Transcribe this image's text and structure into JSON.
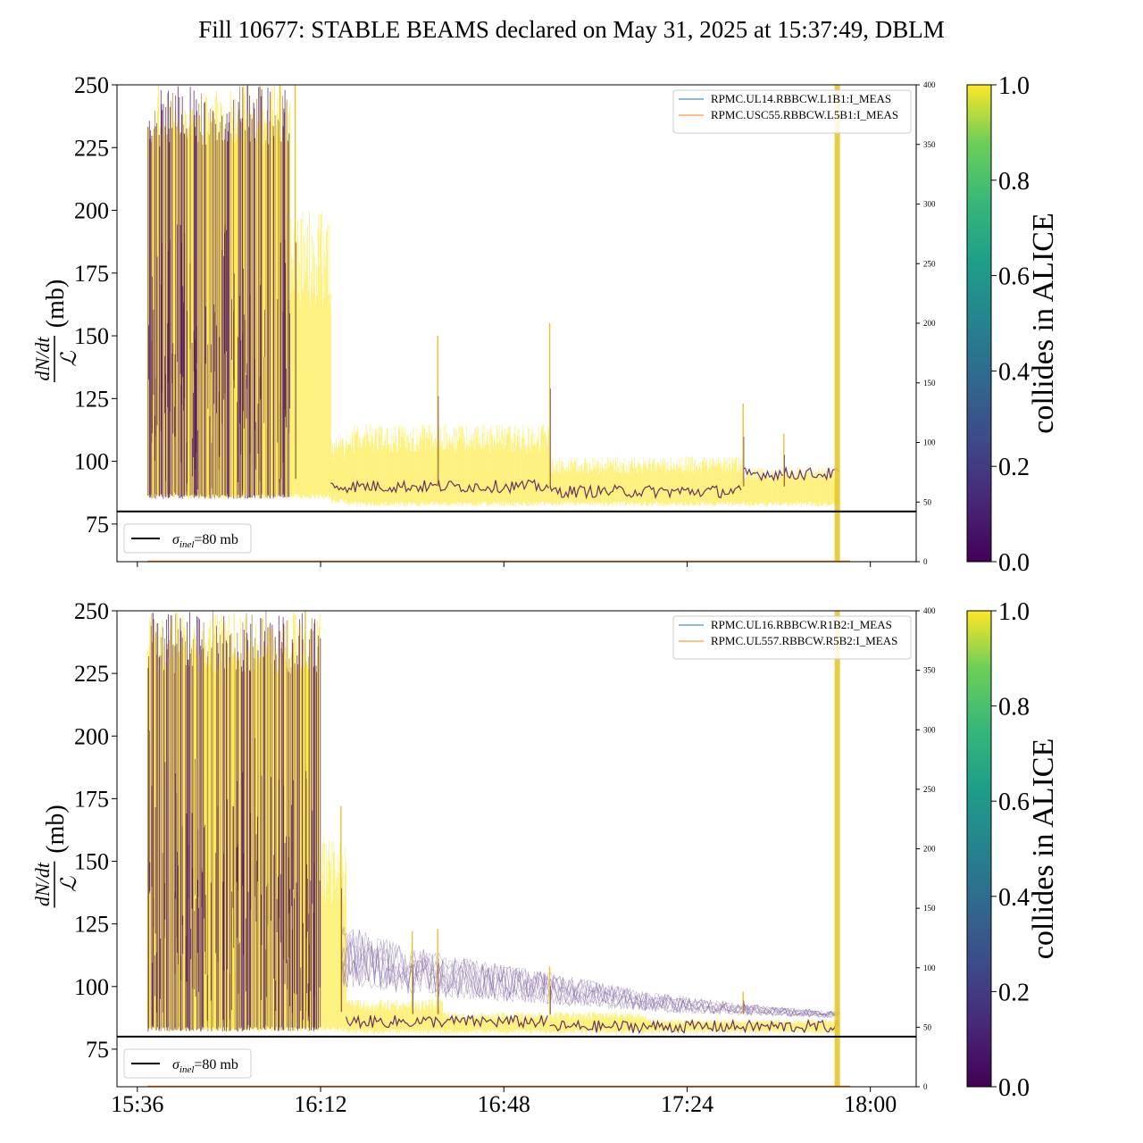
{
  "title": "Fill 10677: STABLE BEAMS declared on May 31, 2025 at 15:37:49, DBLM",
  "colors": {
    "viridis_low": "#440154",
    "viridis_high": "#fde725",
    "reference_line": "#000000"
  },
  "colorbar": {
    "label": "collides in ALICE",
    "ticks": [
      "0.0",
      "0.2",
      "0.4",
      "0.6",
      "0.8",
      "1.0"
    ],
    "range": [
      0,
      1
    ]
  },
  "chart_data": [
    {
      "type": "line",
      "title": "",
      "xlabel": "",
      "ylabel": "dN/dt / L (mb)",
      "ylim": [
        60,
        250
      ],
      "yticks": [
        "75",
        "100",
        "125",
        "150",
        "175",
        "200",
        "225",
        "250"
      ],
      "xrange_minutes": [
        -4,
        153
      ],
      "xticks": [
        {
          "minute": 0,
          "label": "15:36"
        },
        {
          "minute": 36,
          "label": "16:12"
        },
        {
          "minute": 72,
          "label": "16:48"
        },
        {
          "minute": 108,
          "label": "17:24"
        },
        {
          "minute": 144,
          "label": "18:00"
        }
      ],
      "show_x_tick_labels": false,
      "secondary_ylim": [
        0,
        400
      ],
      "secondary_yticks": [
        "0",
        "50",
        "100",
        "150",
        "200",
        "250",
        "300",
        "350",
        "400"
      ],
      "reference_line": {
        "y": 80,
        "label_text": "σinel=80 mb",
        "label_main": "σ",
        "label_sub": "inel",
        "label_rest": "=80 mb"
      },
      "legend": [
        "RPMC.UL14.RBBCW.L1B1:I_MEAS",
        "RPMC.USC55.RBBCW.L5B1:I_MEAS"
      ],
      "legend_colors": [
        "#1f77b4",
        "#ff7f0e"
      ],
      "legend_position": "top-right",
      "band": {
        "end_minute": 138,
        "phases": [
          {
            "from": 2,
            "to": 30,
            "low": 85,
            "high": 250
          },
          {
            "from": 30,
            "to": 38,
            "low": 85,
            "high": 200
          },
          {
            "from": 38,
            "to": 41,
            "low": 83,
            "high": 110
          },
          {
            "from": 41,
            "to": 81,
            "low": 82,
            "high": 115
          },
          {
            "from": 81,
            "to": 119,
            "low": 82,
            "high": 102
          },
          {
            "from": 119,
            "to": 138,
            "low": 82,
            "high": 98
          }
        ],
        "dark_core": [
          {
            "from": 38,
            "to": 81,
            "y": 90
          },
          {
            "from": 81,
            "to": 119,
            "y": 88
          },
          {
            "from": 119,
            "to": 138,
            "y": 95
          }
        ],
        "spikes": [
          {
            "minute": 28,
            "y": 250
          },
          {
            "minute": 31,
            "y": 250
          },
          {
            "minute": 59,
            "y": 150
          },
          {
            "minute": 81,
            "y": 155
          },
          {
            "minute": 119,
            "y": 123
          },
          {
            "minute": 127,
            "y": 111
          }
        ],
        "vertical_band_minute": 137.5
      }
    },
    {
      "type": "line",
      "title": "",
      "xlabel": "",
      "ylabel": "dN/dt / L (mb)",
      "ylim": [
        60,
        250
      ],
      "yticks": [
        "75",
        "100",
        "125",
        "150",
        "175",
        "200",
        "225",
        "250"
      ],
      "xrange_minutes": [
        -4,
        153
      ],
      "xticks": [
        {
          "minute": 0,
          "label": "15:36"
        },
        {
          "minute": 36,
          "label": "16:12"
        },
        {
          "minute": 72,
          "label": "16:48"
        },
        {
          "minute": 108,
          "label": "17:24"
        },
        {
          "minute": 144,
          "label": "18:00"
        }
      ],
      "show_x_tick_labels": true,
      "secondary_ylim": [
        0,
        400
      ],
      "secondary_yticks": [
        "0",
        "50",
        "100",
        "150",
        "200",
        "250",
        "300",
        "350",
        "400"
      ],
      "reference_line": {
        "y": 80,
        "label_text": "σinel=80 mb",
        "label_main": "σ",
        "label_sub": "inel",
        "label_rest": "=80 mb"
      },
      "legend": [
        "RPMC.UL16.RBBCW.R1B2:I_MEAS",
        "RPMC.UL557.RBBCW.R5B2:I_MEAS"
      ],
      "legend_colors": [
        "#1f77b4",
        "#ff7f0e"
      ],
      "legend_position": "top-right",
      "band": {
        "end_minute": 138,
        "phases": [
          {
            "from": 2,
            "to": 36,
            "low": 82,
            "high": 250
          },
          {
            "from": 36,
            "to": 41,
            "low": 82,
            "high": 160
          },
          {
            "from": 41,
            "to": 60,
            "low": 81,
            "high": 95
          },
          {
            "from": 60,
            "to": 100,
            "low": 81,
            "high": 90
          },
          {
            "from": 100,
            "to": 138,
            "low": 81,
            "high": 87
          }
        ],
        "dark_core": [
          {
            "from": 41,
            "to": 81,
            "y": 86
          },
          {
            "from": 81,
            "to": 138,
            "y": 84
          }
        ],
        "purple_envelope": [
          {
            "minute": 40,
            "y": 125
          },
          {
            "minute": 60,
            "y": 113
          },
          {
            "minute": 80,
            "y": 106
          },
          {
            "minute": 100,
            "y": 98
          },
          {
            "minute": 120,
            "y": 93
          },
          {
            "minute": 138,
            "y": 90
          }
        ],
        "spikes": [
          {
            "minute": 33,
            "y": 250
          },
          {
            "minute": 40,
            "y": 172
          },
          {
            "minute": 54,
            "y": 122
          },
          {
            "minute": 59,
            "y": 123
          },
          {
            "minute": 81,
            "y": 108
          },
          {
            "minute": 119,
            "y": 98
          }
        ],
        "vertical_band_minute": 137.5
      }
    }
  ]
}
